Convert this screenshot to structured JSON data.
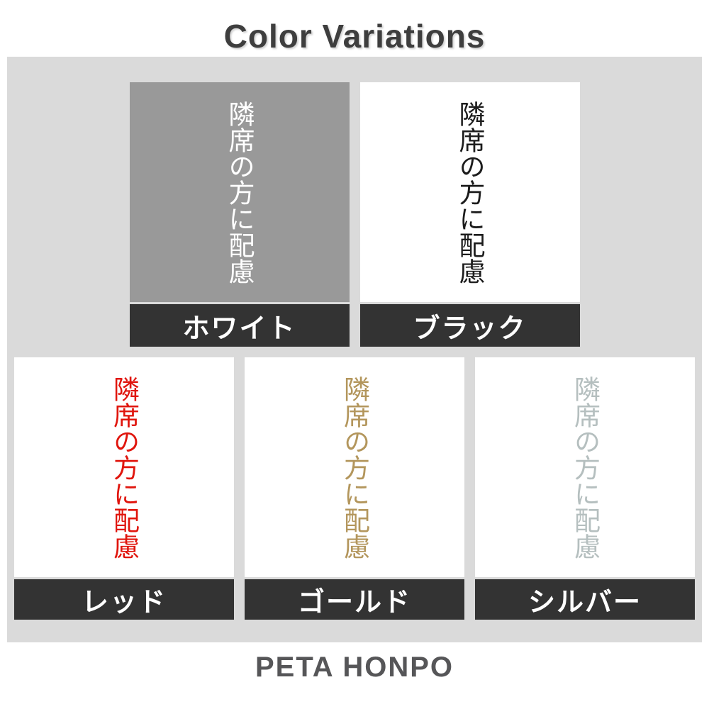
{
  "title": "Color Variations",
  "brand": "PETA HONPO",
  "sample_text": "隣席の方に配慮",
  "colors": {
    "panel_bg": "#dadada",
    "label_bar_bg": "#333333",
    "title_color": "#3e3e3e",
    "brand_color": "#565658"
  },
  "swatches": [
    {
      "name": "white",
      "label": "ホワイト",
      "row": 1,
      "preview_bg": "#999999",
      "text_color": "#ffffff"
    },
    {
      "name": "black",
      "label": "ブラック",
      "row": 1,
      "preview_bg": "#ffffff",
      "text_color": "#1c1c1c"
    },
    {
      "name": "red",
      "label": "レッド",
      "row": 2,
      "preview_bg": "#ffffff",
      "text_color": "#e0150d"
    },
    {
      "name": "gold",
      "label": "ゴールド",
      "row": 2,
      "preview_bg": "#ffffff",
      "text_color": "#b3965c"
    },
    {
      "name": "silver",
      "label": "シルバー",
      "row": 2,
      "preview_bg": "#ffffff",
      "text_color": "#b5bfbf"
    }
  ]
}
